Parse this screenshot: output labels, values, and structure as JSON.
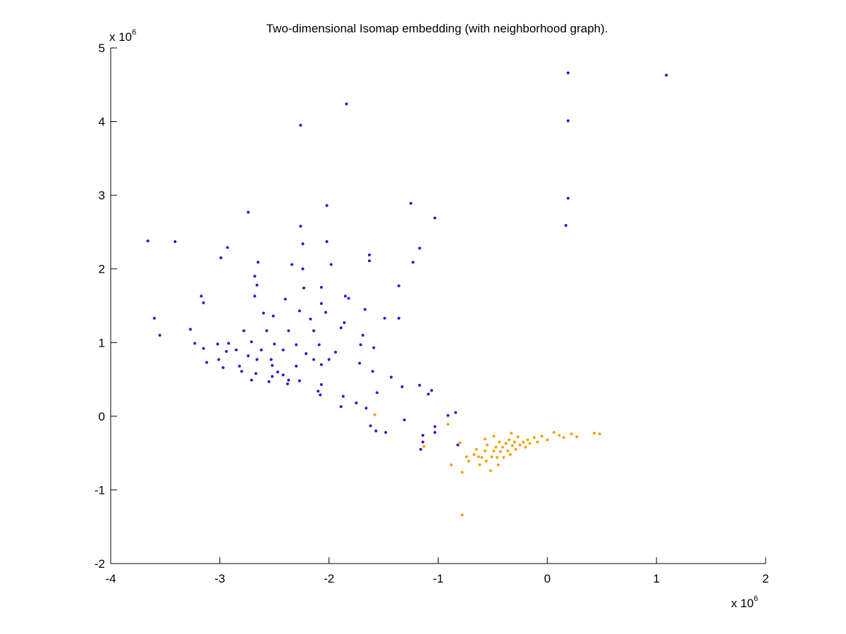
{
  "chart_data": {
    "type": "scatter",
    "title": "Two-dimensional Isomap embedding (with neighborhood graph).",
    "xlim": [
      -4,
      2
    ],
    "xticks": [
      -4,
      -3,
      -2,
      -1,
      0,
      1,
      2
    ],
    "ylim": [
      -2,
      5
    ],
    "yticks": [
      -2,
      -1,
      0,
      1,
      2,
      3,
      4,
      5
    ],
    "x_multiplier": {
      "base": "x 10",
      "exponent": "6"
    },
    "y_multiplier": {
      "base": "x 10",
      "exponent": "6"
    },
    "grid": false,
    "series": [
      {
        "color": "#3c0ad2",
        "x": [
          -3.66,
          -3.41,
          -3.6,
          -3.55,
          -2.74,
          -2.26,
          -1.84,
          0.19,
          1.09,
          0.19,
          0.19,
          0.17,
          -2.02,
          -1.25,
          -1.03,
          -2.26,
          -2.24,
          -2.02,
          -2.93,
          -2.99,
          -1.17,
          -1.23,
          -1.63,
          -1.63,
          -2.65,
          -2.68,
          -2.34,
          -2.24,
          -1.98,
          -1.36,
          -3.17,
          -3.15,
          -2.66,
          -2.23,
          -2.07,
          -1.85,
          -1.82,
          -2.68,
          -2.4,
          -2.07,
          -1.67,
          -2.27,
          -1.49,
          -1.36,
          -2.6,
          -2.51,
          -2.03,
          -2.17,
          -1.86,
          -3.27,
          -2.78,
          -2.57,
          -2.37,
          -2.14,
          -1.89,
          -1.69,
          -3.23,
          -3.02,
          -2.92,
          -2.71,
          -2.5,
          -2.3,
          -2.09,
          -1.71,
          -1.59,
          -3.15,
          -2.94,
          -2.85,
          -2.62,
          -2.42,
          -2.21,
          -1.94,
          -3.01,
          -2.74,
          -2.66,
          -2.53,
          -2.14,
          -2.0,
          -3.12,
          -2.82,
          -2.52,
          -2.3,
          -2.07,
          -1.72,
          -2.97,
          -2.8,
          -2.67,
          -2.47,
          -1.6,
          -2.71,
          -2.55,
          -2.37,
          -2.27,
          -2.38,
          -2.07,
          -2.52,
          -2.42,
          -2.1,
          -1.43,
          -2.08,
          -1.33,
          -1.17,
          -1.56,
          -1.06,
          -1.09,
          -1.87,
          -1.75,
          -1.89,
          -1.66,
          -1.31,
          -0.91,
          -0.84,
          -1.62,
          -1.57,
          -1.48,
          -1.14,
          -1.03,
          -1.03,
          -1.14,
          -1.16,
          -0.82
        ],
        "values": [
          2.38,
          2.37,
          1.33,
          1.1,
          2.77,
          3.95,
          4.24,
          4.66,
          4.63,
          4.01,
          2.96,
          2.59,
          2.86,
          2.89,
          2.69,
          2.58,
          2.34,
          2.37,
          2.29,
          2.15,
          2.28,
          2.09,
          2.19,
          2.11,
          2.09,
          1.9,
          2.06,
          2.0,
          2.06,
          1.77,
          1.63,
          1.54,
          1.78,
          1.74,
          1.75,
          1.63,
          1.6,
          1.63,
          1.59,
          1.53,
          1.45,
          1.43,
          1.33,
          1.33,
          1.4,
          1.36,
          1.41,
          1.32,
          1.27,
          1.18,
          1.16,
          1.16,
          1.16,
          1.16,
          1.2,
          1.1,
          0.99,
          0.98,
          0.99,
          1.01,
          0.98,
          0.97,
          0.97,
          0.97,
          0.93,
          0.92,
          0.88,
          0.9,
          0.9,
          0.9,
          0.85,
          0.87,
          0.77,
          0.82,
          0.77,
          0.77,
          0.77,
          0.77,
          0.73,
          0.68,
          0.69,
          0.68,
          0.7,
          0.72,
          0.66,
          0.61,
          0.58,
          0.6,
          0.61,
          0.49,
          0.47,
          0.49,
          0.48,
          0.44,
          0.43,
          0.54,
          0.56,
          0.34,
          0.53,
          0.29,
          0.4,
          0.42,
          0.32,
          0.35,
          0.3,
          0.27,
          0.18,
          0.13,
          0.11,
          -0.05,
          0.01,
          0.05,
          -0.13,
          -0.2,
          -0.22,
          -0.26,
          -0.14,
          -0.22,
          -0.35,
          -0.45,
          -0.39
        ]
      },
      {
        "color": "#f4a00c",
        "x": [
          -1.58,
          -0.91,
          -1.13,
          -0.8,
          -0.88,
          -0.78,
          -0.78,
          -0.74,
          -0.72,
          -0.67,
          -0.65,
          -0.62,
          -0.6,
          -0.57,
          -0.55,
          -0.52,
          -0.51,
          -0.49,
          -0.47,
          -0.46,
          -0.44,
          -0.43,
          -0.41,
          -0.4,
          -0.38,
          -0.36,
          -0.35,
          -0.34,
          -0.32,
          -0.3,
          -0.29,
          -0.27,
          -0.25,
          -0.22,
          -0.2,
          -0.18,
          -0.16,
          -0.12,
          -0.09,
          -0.05,
          0.0,
          0.06,
          0.11,
          0.15,
          0.22,
          0.27,
          0.43,
          0.48,
          -0.57,
          -0.49,
          -0.33,
          -0.45,
          -0.56,
          -0.63
        ],
        "values": [
          0.02,
          -0.11,
          -0.41,
          -0.36,
          -0.66,
          -0.76,
          -1.34,
          -0.55,
          -0.61,
          -0.52,
          -0.45,
          -0.66,
          -0.56,
          -0.47,
          -0.39,
          -0.74,
          -0.55,
          -0.47,
          -0.42,
          -0.56,
          -0.35,
          -0.48,
          -0.42,
          -0.56,
          -0.37,
          -0.47,
          -0.32,
          -0.52,
          -0.4,
          -0.35,
          -0.45,
          -0.28,
          -0.39,
          -0.35,
          -0.42,
          -0.32,
          -0.37,
          -0.29,
          -0.35,
          -0.27,
          -0.32,
          -0.22,
          -0.26,
          -0.29,
          -0.24,
          -0.28,
          -0.23,
          -0.24,
          -0.31,
          -0.27,
          -0.23,
          -0.66,
          -0.61,
          -0.55
        ]
      }
    ]
  }
}
